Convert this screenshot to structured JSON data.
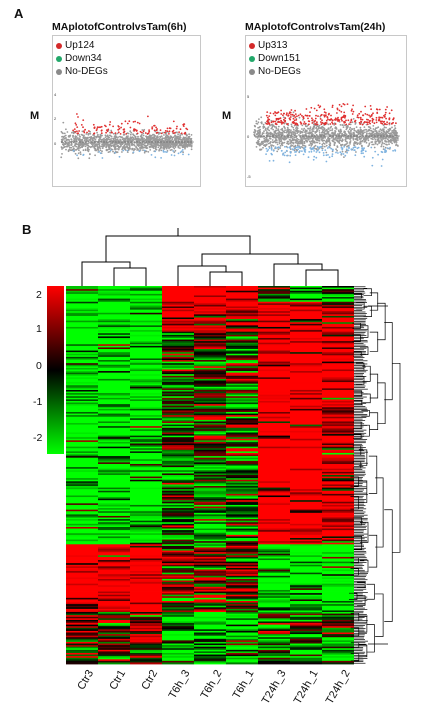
{
  "panel_a_letter": "A",
  "panel_b_letter": "B",
  "chart_data": [
    {
      "type": "scatter",
      "title": "MAplotofControlvsTam(6h)",
      "ylabel": "M",
      "legend": [
        {
          "name": "Up124",
          "color": "#d42a2a"
        },
        {
          "name": "Down34",
          "color": "#22a86a"
        },
        {
          "name": "No-DEGs",
          "color": "#8a8a8a"
        }
      ],
      "legend_position": "top-left",
      "yticks": [
        "4",
        "2",
        "0"
      ],
      "series": [
        {
          "name": "Up124",
          "count": 124
        },
        {
          "name": "Down34",
          "count": 34
        }
      ]
    },
    {
      "type": "scatter",
      "title": "MAplotofControlvsTam(24h)",
      "ylabel": "M",
      "legend": [
        {
          "name": "Up313",
          "color": "#d42a2a"
        },
        {
          "name": "Down151",
          "color": "#22a86a"
        },
        {
          "name": "No-DEGs",
          "color": "#8a8a8a"
        }
      ],
      "legend_position": "top-left",
      "yticks": [
        "5",
        "0",
        "-5"
      ],
      "series": [
        {
          "name": "Up313",
          "count": 313
        },
        {
          "name": "Down151",
          "count": 151
        }
      ]
    },
    {
      "type": "heatmap",
      "columns": [
        "Ctr3",
        "Ctr1",
        "Ctr2",
        "T6h_3",
        "T6h_2",
        "T6h_1",
        "T24h_3",
        "T24h_1",
        "T24h_2"
      ],
      "colorbar": {
        "ticks": [
          "2",
          "1",
          "0",
          "-1",
          "-2"
        ],
        "range": [
          -2,
          2
        ],
        "colors": {
          "high": "#ff0000",
          "mid": "#000000",
          "low": "#00ff00"
        }
      },
      "column_dendrogram": true,
      "row_dendrogram": true
    }
  ]
}
